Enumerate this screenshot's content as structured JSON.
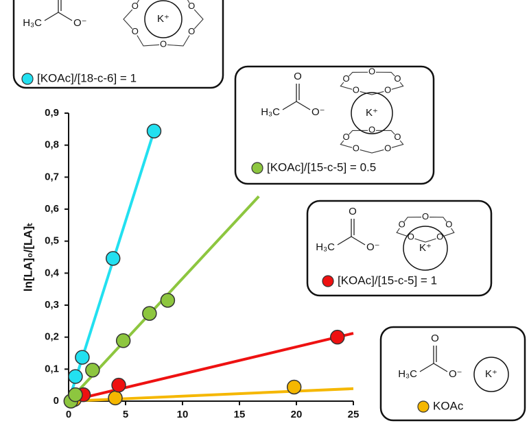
{
  "chart_data": {
    "type": "scatter",
    "y_label": "ln[LA]₀/[LA]ₜ",
    "xlim": [
      0,
      25
    ],
    "ylim": [
      0,
      0.9
    ],
    "xticks": [
      0,
      5,
      10,
      15,
      20,
      25
    ],
    "yticks": [
      0,
      {
        "value": 0.1,
        "label": "0,1"
      },
      {
        "value": 0.2,
        "label": "0,2"
      },
      {
        "value": 0.3,
        "label": "0,3"
      },
      {
        "value": 0.4,
        "label": "0,4"
      },
      {
        "value": 0.5,
        "label": "0,5"
      },
      {
        "value": 0.6,
        "label": "0,6"
      },
      {
        "value": 0.7,
        "label": "0,7"
      },
      {
        "value": 0.8,
        "label": "0,8"
      },
      {
        "value": 0.9,
        "label": "0,9"
      }
    ],
    "structure": {
      "carbonyl_o": "O",
      "methyl": "H₃C",
      "anion": "O⁻",
      "cation": "K⁺",
      "ring_o": "O"
    },
    "series": [
      {
        "name": "[KOAc]/[18-c-6] = 1",
        "color": "#22e0f0",
        "x": [
          0.6,
          1.2,
          3.9,
          7.5
        ],
        "values": [
          0.077,
          0.137,
          0.446,
          0.844
        ],
        "fit": {
          "x": [
            0,
            7.5
          ],
          "values": [
            0,
            0.844
          ]
        }
      },
      {
        "name": "[KOAc]/[15-c-5] = 0.5",
        "color": "#8dc63f",
        "x": [
          0.2,
          0.6,
          2.1,
          4.8,
          7.1,
          8.7
        ],
        "values": [
          0,
          0.02,
          0.097,
          0.189,
          0.274,
          0.315
        ],
        "fit": {
          "x": [
            0,
            16.7
          ],
          "values": [
            0,
            0.64
          ]
        }
      },
      {
        "name": "[KOAc]/[15-c-5] = 1",
        "color": "#ee1111",
        "x": [
          1.3,
          4.4,
          23.6
        ],
        "values": [
          0.02,
          0.05,
          0.2
        ],
        "fit": {
          "x": [
            0,
            25
          ],
          "values": [
            0,
            0.212
          ]
        }
      },
      {
        "name": "KOAc",
        "color": "#f5b700",
        "x": [
          0.5,
          4.1,
          19.8
        ],
        "values": [
          0.005,
          0.01,
          0.044
        ],
        "fit": {
          "x": [
            0,
            25
          ],
          "values": [
            0,
            0.039
          ]
        }
      }
    ]
  }
}
